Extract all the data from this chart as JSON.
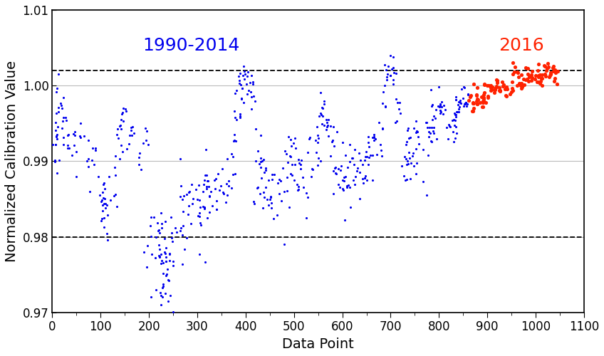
{
  "title": "",
  "xlabel": "Data Point",
  "ylabel": "Normalized Calibration Value",
  "xlim": [
    0,
    1100
  ],
  "ylim": [
    0.97,
    1.01
  ],
  "yticks": [
    0.97,
    0.98,
    0.99,
    1.0,
    1.01
  ],
  "xticks": [
    0,
    100,
    200,
    300,
    400,
    500,
    600,
    700,
    800,
    900,
    1000,
    1100
  ],
  "dashed_lines": [
    1.002,
    0.98
  ],
  "blue_label": "1990-2014",
  "red_label": "2016",
  "blue_color": "#0000EE",
  "red_color": "#FF2200",
  "label_fontsize": 18,
  "axis_label_fontsize": 14,
  "tick_fontsize": 12,
  "seed": 7
}
